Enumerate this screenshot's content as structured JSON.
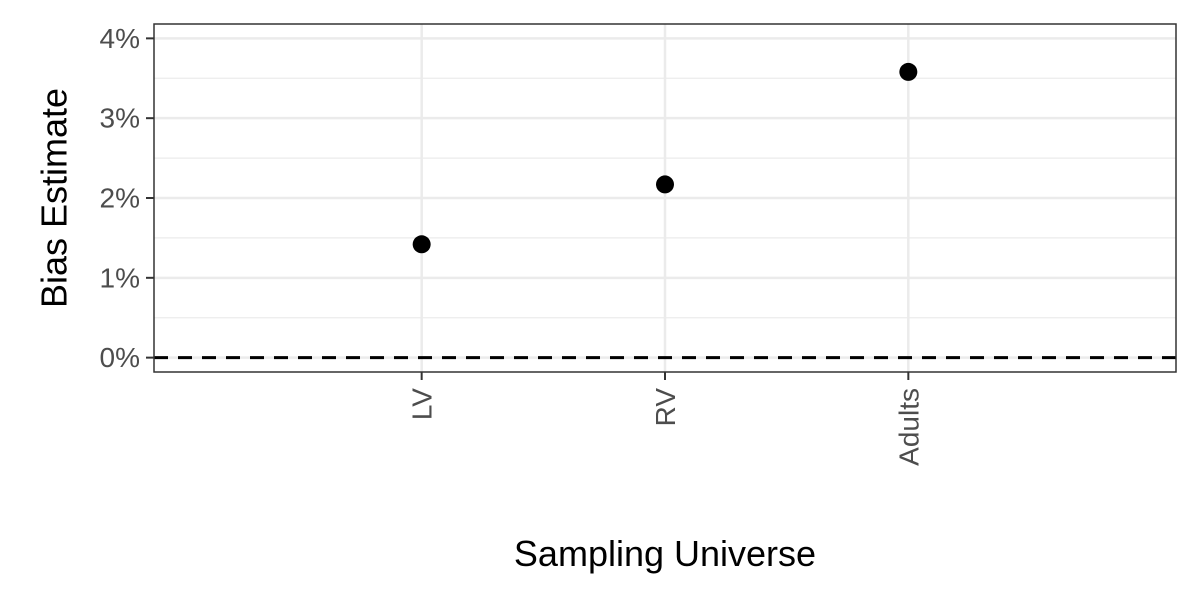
{
  "chart_data": {
    "type": "scatter",
    "categories": [
      "LV",
      "RV",
      "Adults"
    ],
    "values": [
      1.42,
      2.17,
      3.58
    ],
    "title": "",
    "xlabel": "Sampling Universe",
    "ylabel": "Bias Estimate",
    "ylim": [
      -0.18,
      4.18
    ],
    "yticks": [
      0,
      1,
      2,
      3,
      4
    ],
    "ytick_labels": [
      "0%",
      "1%",
      "2%",
      "3%",
      "4%"
    ],
    "reference_line": {
      "y": 0,
      "style": "dashed"
    },
    "grid": true,
    "legend": "none",
    "colors": {
      "point": "#000000",
      "grid": "#ebebeb",
      "panel_border": "#333333",
      "tick_text": "#4d4d4d"
    }
  }
}
